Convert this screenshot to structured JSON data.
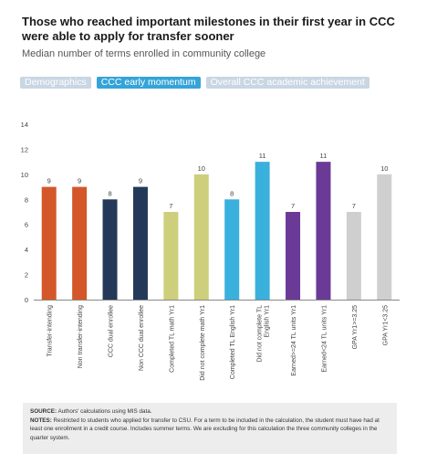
{
  "header": {
    "title": "Those who reached important milestones in their first year in CCC were able to apply for transfer sooner",
    "subtitle": "Median number of terms enrolled in community college"
  },
  "tabs": [
    {
      "label": "Demographics",
      "active": false
    },
    {
      "label": "CCC early momentum",
      "active": true
    },
    {
      "label": "Overall CCC academic achievement",
      "active": false
    }
  ],
  "colors": {
    "tab_active": "#35a4d8",
    "tab_inactive": "#c9d6e3",
    "orange": "#d4572a",
    "navy": "#24395a",
    "olive": "#cdcf7c",
    "blue": "#3ab0dc",
    "purple": "#6a3a96",
    "gray": "#cfcfcf"
  },
  "chart_data": {
    "type": "bar",
    "ylim": [
      0,
      14
    ],
    "yticks": [
      0,
      2,
      4,
      6,
      8,
      10,
      12,
      14
    ],
    "grid": false,
    "categories": [
      "Transfer-intending",
      "Non transfer-intending",
      "CCC dual enrollee",
      "Non CCC dual enrollee",
      "Completed TL math Yr1",
      "Did not complete math Yr1",
      "Completed TL English Yr1",
      "Did not complete TL English Yr1",
      "Earned>=24 TL units Yr1",
      "Earned<24 TL units Yr1",
      "GPA Yr1>=3.25",
      "GPA Yr1<3.25"
    ],
    "values": [
      9,
      9,
      8,
      9,
      7,
      10,
      8,
      11,
      7,
      11,
      7,
      10
    ],
    "bar_colors": [
      "#d4572a",
      "#d4572a",
      "#24395a",
      "#24395a",
      "#cdcf7c",
      "#cdcf7c",
      "#3ab0dc",
      "#3ab0dc",
      "#6a3a96",
      "#6a3a96",
      "#cfcfcf",
      "#cfcfcf"
    ]
  },
  "notes": {
    "source_label": "SOURCE:",
    "source_text": " Authors' calculations using MIS data.",
    "notes_label": "NOTES:",
    "notes_text": " Restricted to students who applied for transfer to CSU. For a term to be included in the calculation, the student must have had at least one enrollment in a credit course. Includes summer terms. We are excluding for this calculation the three community colleges in the quarter system."
  }
}
